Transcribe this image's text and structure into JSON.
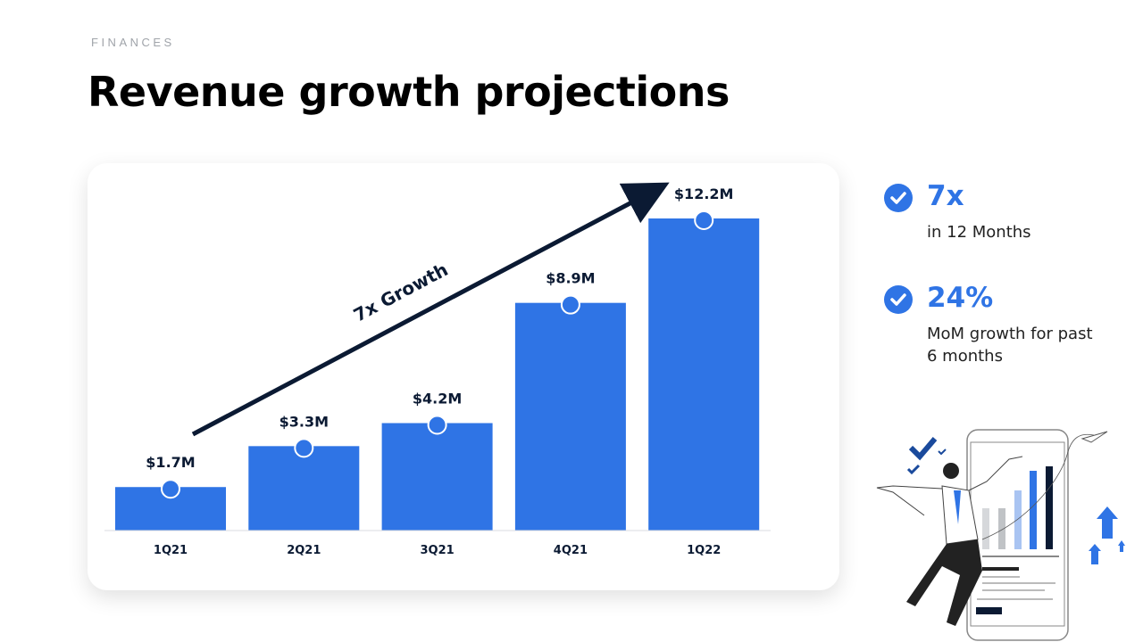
{
  "header": {
    "eyebrow": "FINANCES",
    "title": "Revenue growth projections"
  },
  "chart_data": {
    "type": "bar",
    "categories": [
      "1Q21",
      "2Q21",
      "3Q21",
      "4Q21",
      "1Q22"
    ],
    "values": [
      1.7,
      3.3,
      4.2,
      8.9,
      12.2
    ],
    "data_labels": [
      "$1.7M",
      "$3.3M",
      "$4.2M",
      "$8.9M",
      "$12.2M"
    ],
    "unit": "$M",
    "annotation": "7x Growth",
    "ylim": [
      0,
      12.2
    ],
    "grid": false,
    "bar_color": "#2f74e5"
  },
  "stats": [
    {
      "value": "7x",
      "label": "in 12 Months"
    },
    {
      "value": "24%",
      "label": "MoM growth for past 6 months"
    }
  ],
  "colors": {
    "accent": "#2f74e5",
    "dark": "#0b1a33"
  }
}
